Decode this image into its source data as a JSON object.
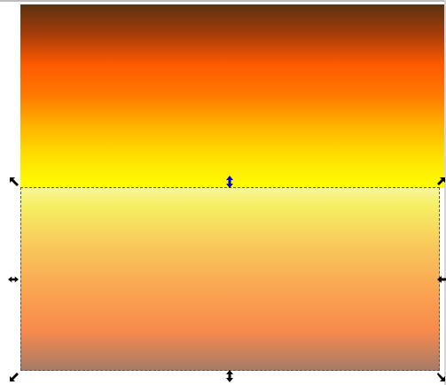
{
  "canvas": {
    "title": "",
    "objects": [
      {
        "name": "upper-gradient-rectangle",
        "gradient": [
          "#5b3210",
          "#a53c0a",
          "#ff5a00",
          "#ff7a00",
          "#ffb200",
          "#ffe000",
          "#ffff00"
        ]
      },
      {
        "name": "lower-gradient-rectangle",
        "gradient": [
          "#f8f59a",
          "#f6ef62",
          "#f8c35a",
          "#faa250",
          "#f78a4c",
          "#a57b67"
        ],
        "selected": true
      }
    ]
  },
  "selection": {
    "handles": [
      "scale-nw-icon",
      "scale-n-icon",
      "scale-ne-icon",
      "scale-w-icon",
      "scale-e-icon",
      "scale-sw-icon",
      "scale-s-icon",
      "scale-se-icon"
    ],
    "active_handle_color": "#0000dd",
    "handle_color": "#000000"
  }
}
